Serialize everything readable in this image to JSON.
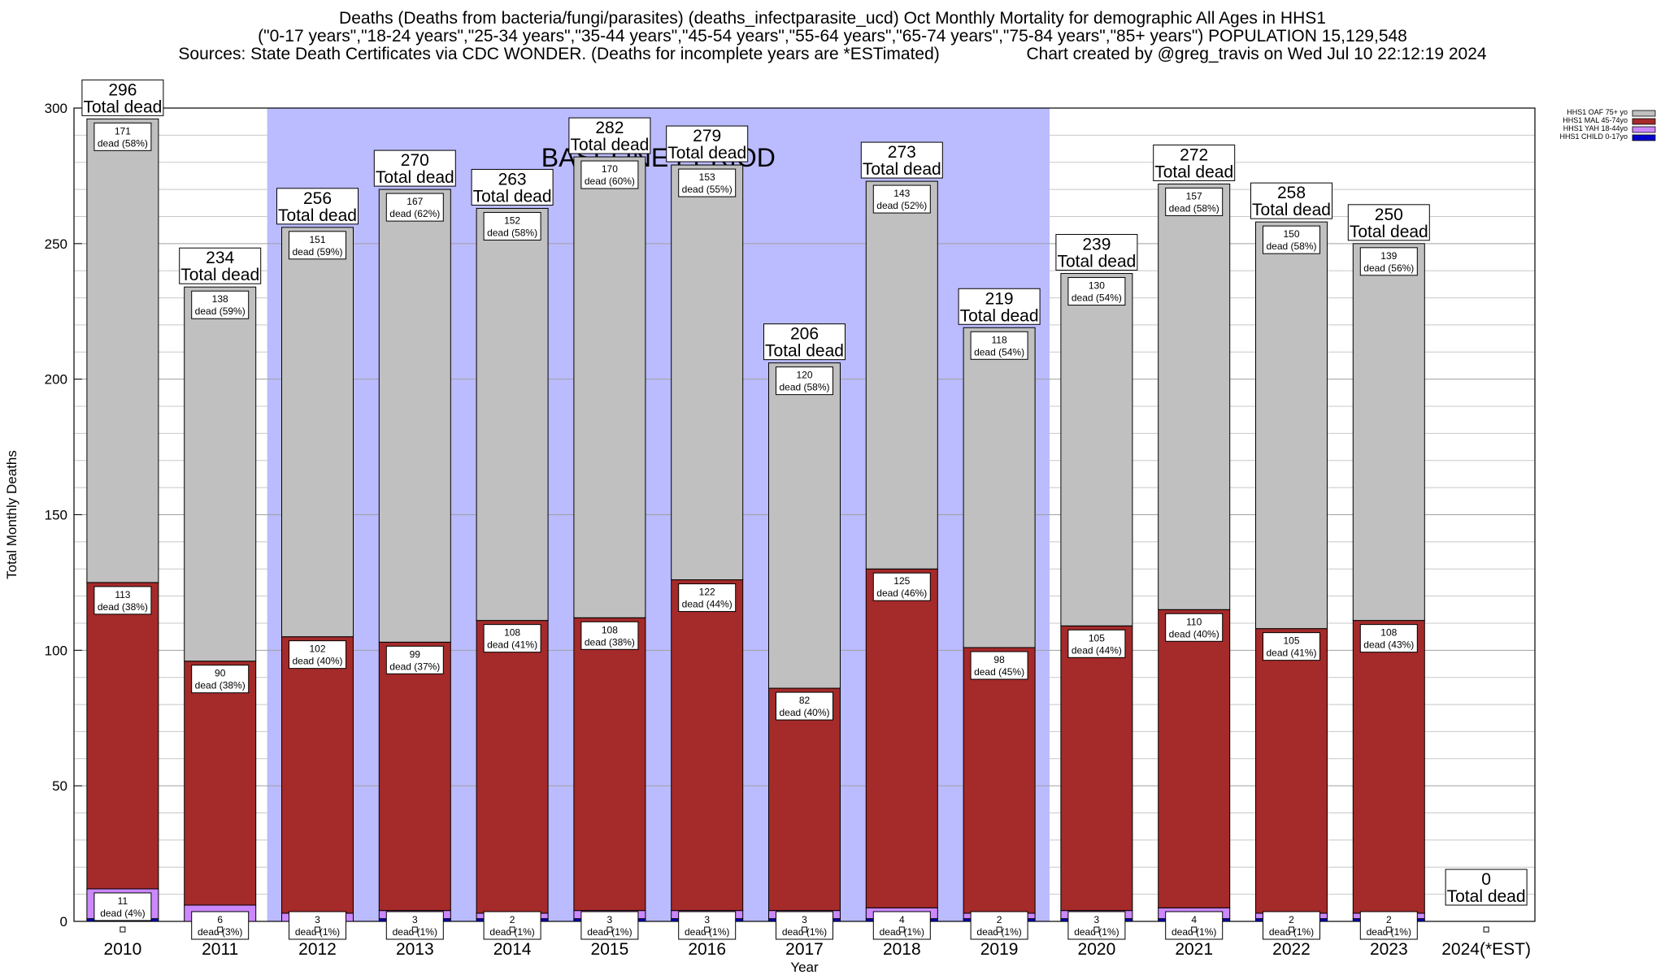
{
  "header": {
    "line1": "Deaths (Deaths from bacteria/fungi/parasites) (deaths_infectparasite_ucd) Oct Monthly Mortality for demographic All Ages in HHS1",
    "line2": "(\"0-17 years\",\"18-24 years\",\"25-34 years\",\"35-44 years\",\"45-54 years\",\"55-64 years\",\"65-74 years\",\"75-84 years\",\"85+ years\") POPULATION 15,129,548",
    "line3_left": "Sources: State Death Certificates via CDC WONDER. (Deaths for incomplete years are *ESTimated)",
    "line3_right": "Chart created by @greg_travis on Wed Jul 10 22:12:19 2024"
  },
  "colors": {
    "baseline_band": "#bbbbff",
    "child": "#0000cc",
    "yah": "#cc88ff",
    "mal": "#a52a2a",
    "oaf": "#c0c0c0",
    "grid": "#c8c8c8"
  },
  "chart_data": {
    "type": "bar",
    "stacked": true,
    "xlabel": "Year",
    "ylabel": "Total Monthly Deaths",
    "ylim": [
      0,
      300
    ],
    "yticks": [
      0,
      50,
      100,
      150,
      200,
      250,
      300
    ],
    "grid": true,
    "legend_position": "top-right",
    "baseline_label": "BASELINE PERIOD",
    "baseline_range": [
      "2012",
      "2019"
    ],
    "total_suffix": "Total dead",
    "categories": [
      "2010",
      "2011",
      "2012",
      "2013",
      "2014",
      "2015",
      "2016",
      "2017",
      "2018",
      "2019",
      "2020",
      "2021",
      "2022",
      "2023",
      "2024(*EST)"
    ],
    "totals": [
      296,
      234,
      256,
      270,
      263,
      282,
      279,
      206,
      273,
      219,
      239,
      272,
      258,
      250,
      0
    ],
    "series": [
      {
        "name": "HHS1 CHILD 0-17yo",
        "color_key": "child",
        "values": [
          1,
          0,
          0,
          1,
          1,
          1,
          1,
          1,
          1,
          1,
          1,
          1,
          1,
          1,
          0
        ]
      },
      {
        "name": "HHS1 YAH 18-44yo",
        "color_key": "yah",
        "values": [
          11,
          6,
          3,
          3,
          2,
          3,
          3,
          3,
          4,
          2,
          3,
          4,
          2,
          2,
          0
        ],
        "labels": [
          "11\ndead (4%)",
          "6\ndead (3%)",
          "3\ndead (1%)",
          "3\ndead (1%)",
          "2\ndead (1%)",
          "3\ndead (1%)",
          "3\ndead (1%)",
          "3\ndead (1%)",
          "4\ndead (1%)",
          "2\ndead (1%)",
          "3\ndead (1%)",
          "4\ndead (1%)",
          "2\ndead (1%)",
          "2\ndead (1%)",
          ""
        ]
      },
      {
        "name": "HHS1 MAL 45-74yo",
        "color_key": "mal",
        "values": [
          113,
          90,
          102,
          99,
          108,
          108,
          122,
          82,
          125,
          98,
          105,
          110,
          105,
          108,
          0
        ],
        "labels": [
          "113\ndead (38%)",
          "90\ndead (38%)",
          "102\ndead (40%)",
          "99\ndead (37%)",
          "108\ndead (41%)",
          "108\ndead (38%)",
          "122\ndead (44%)",
          "82\ndead (40%)",
          "125\ndead (46%)",
          "98\ndead (45%)",
          "105\ndead (44%)",
          "110\ndead (40%)",
          "105\ndead (41%)",
          "108\ndead (43%)",
          ""
        ]
      },
      {
        "name": "HHS1 OAF 75+ yo",
        "color_key": "oaf",
        "values": [
          171,
          138,
          151,
          167,
          152,
          170,
          153,
          120,
          143,
          118,
          130,
          157,
          150,
          139,
          0
        ],
        "labels": [
          "171\ndead (58%)",
          "138\ndead (59%)",
          "151\ndead (59%)",
          "167\ndead (62%)",
          "152\ndead (58%)",
          "170\ndead (60%)",
          "153\ndead (55%)",
          "120\ndead (58%)",
          "143\ndead (52%)",
          "118\ndead (54%)",
          "130\ndead (54%)",
          "157\ndead (58%)",
          "150\ndead (58%)",
          "139\ndead (56%)",
          ""
        ]
      }
    ],
    "legend_order": [
      "HHS1 OAF 75+ yo",
      "HHS1 MAL 45-74yo",
      "HHS1 YAH 18-44yo",
      "HHS1 CHILD 0-17yo"
    ]
  }
}
